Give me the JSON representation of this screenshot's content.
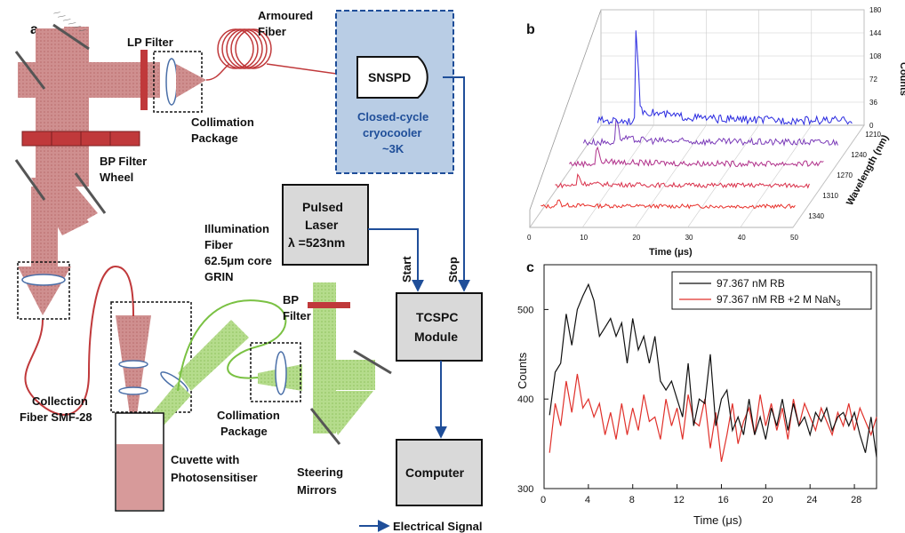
{
  "panel_a": {
    "letter": "a",
    "labels": {
      "lp_filter": "LP Filter",
      "armoured_1": "Armoured",
      "armoured_2": "Fiber",
      "snspd": "SNSPD",
      "cryo_1": "Closed-cycle",
      "cryo_2": "cryocooler",
      "cryo_3": "~3K",
      "collimation_top_1": "Collimation",
      "collimation_top_2": "Package",
      "bp_wheel_1": "BP Filter",
      "bp_wheel_2": "Wheel",
      "pulsed_1": "Pulsed",
      "pulsed_2": "Laser",
      "pulsed_3": "λ =523nm",
      "illum_1": "Illumination",
      "illum_2": "Fiber",
      "illum_3": "62.5μm core",
      "illum_4": "GRIN",
      "start": "Start",
      "stop": "Stop",
      "bp_filter_1": "BP",
      "bp_filter_2": "Filter",
      "tcspc_1": "TCSPC",
      "tcspc_2": "Module",
      "collection_1": "Collection",
      "collection_2": "Fiber SMF-28",
      "collimation_bot_1": "Collimation",
      "collimation_bot_2": "Package",
      "cuvette_1": "Cuvette with",
      "cuvette_2": "Photosensitiser",
      "steering_1": "Steering",
      "steering_2": "Mirrors",
      "computer": "Computer",
      "electrical": "Electrical Signal"
    }
  },
  "chart_data": [
    {
      "type": "line",
      "panel": "b",
      "xlabel": "Time (μs)",
      "ylabel": "Counts",
      "zlabel": "Wavelength (nm)",
      "x_ticks": [
        "0",
        "10",
        "20",
        "30",
        "40",
        "50"
      ],
      "y_ticks": [
        "0",
        "36",
        "72",
        "108",
        "144",
        "180"
      ],
      "wavelength_ticks": [
        "1210",
        "1240",
        "1270",
        "1310",
        "1340"
      ],
      "xlim": [
        0,
        50
      ],
      "ylim": [
        0,
        180
      ],
      "series": [
        {
          "wavelength": 1340,
          "color": "#e8302a",
          "peak": 20,
          "baseline": 7
        },
        {
          "wavelength": 1310,
          "color": "#d9304a",
          "peak": 28,
          "baseline": 8
        },
        {
          "wavelength": 1270,
          "color": "#b0308a",
          "peak": 40,
          "baseline": 10
        },
        {
          "wavelength": 1240,
          "color": "#7a3ab8",
          "peak": 55,
          "baseline": 12
        },
        {
          "wavelength": 1210,
          "color": "#2a2ae0",
          "peak": 170,
          "baseline": 14
        }
      ]
    },
    {
      "type": "line",
      "panel": "c",
      "xlabel": "Time (μs)",
      "ylabel": "Counts",
      "xlim": [
        0,
        30
      ],
      "ylim": [
        300,
        550
      ],
      "x_ticks": [
        "0",
        "4",
        "8",
        "12",
        "16",
        "20",
        "24",
        "28"
      ],
      "y_ticks": [
        "300",
        "400",
        "500"
      ],
      "legend_position": "top-right",
      "series": [
        {
          "name": "97.367 nM RB",
          "color": "#111111",
          "x": [
            0.5,
            1,
            1.5,
            2,
            2.5,
            3,
            3.5,
            4,
            4.5,
            5,
            5.5,
            6,
            6.5,
            7,
            7.5,
            8,
            8.5,
            9,
            9.5,
            10,
            10.5,
            11,
            11.5,
            12,
            12.5,
            13,
            13.5,
            14,
            14.5,
            15,
            15.5,
            16,
            16.5,
            17,
            17.5,
            18,
            18.5,
            19,
            19.5,
            20,
            20.5,
            21,
            21.5,
            22,
            22.5,
            23,
            23.5,
            24,
            24.5,
            25,
            25.5,
            26,
            26.5,
            27,
            27.5,
            28,
            28.5,
            29,
            29.5,
            30
          ],
          "y": [
            382,
            430,
            440,
            495,
            460,
            500,
            515,
            528,
            510,
            470,
            480,
            490,
            470,
            485,
            440,
            490,
            455,
            470,
            440,
            470,
            420,
            410,
            420,
            400,
            380,
            440,
            370,
            400,
            395,
            450,
            370,
            400,
            410,
            365,
            380,
            360,
            400,
            360,
            380,
            355,
            390,
            370,
            400,
            365,
            395,
            370,
            380,
            360,
            385,
            375,
            390,
            365,
            380,
            385,
            370,
            385,
            360,
            340,
            380,
            335
          ]
        },
        {
          "name": "97.367 nM RB +2 M NaN",
          "name_sub": "3",
          "color": "#e0302a",
          "x": [
            0.5,
            1,
            1.5,
            2,
            2.5,
            3,
            3.5,
            4,
            4.5,
            5,
            5.5,
            6,
            6.5,
            7,
            7.5,
            8,
            8.5,
            9,
            9.5,
            10,
            10.5,
            11,
            11.5,
            12,
            12.5,
            13,
            13.5,
            14,
            14.5,
            15,
            15.5,
            16,
            16.5,
            17,
            17.5,
            18,
            18.5,
            19,
            19.5,
            20,
            20.5,
            21,
            21.5,
            22,
            22.5,
            23,
            23.5,
            24,
            24.5,
            25,
            25.5,
            26,
            26.5,
            27,
            27.5,
            28,
            28.5,
            29,
            29.5,
            30
          ],
          "y": [
            340,
            395,
            370,
            420,
            385,
            428,
            390,
            400,
            380,
            395,
            360,
            385,
            355,
            395,
            360,
            390,
            365,
            405,
            375,
            380,
            355,
            400,
            370,
            390,
            355,
            405,
            375,
            370,
            400,
            345,
            385,
            330,
            360,
            395,
            350,
            375,
            390,
            360,
            405,
            370,
            395,
            365,
            390,
            355,
            400,
            370,
            395,
            380,
            365,
            390,
            375,
            360,
            385,
            370,
            395,
            365,
            390,
            375,
            360,
            380
          ]
        }
      ]
    }
  ]
}
